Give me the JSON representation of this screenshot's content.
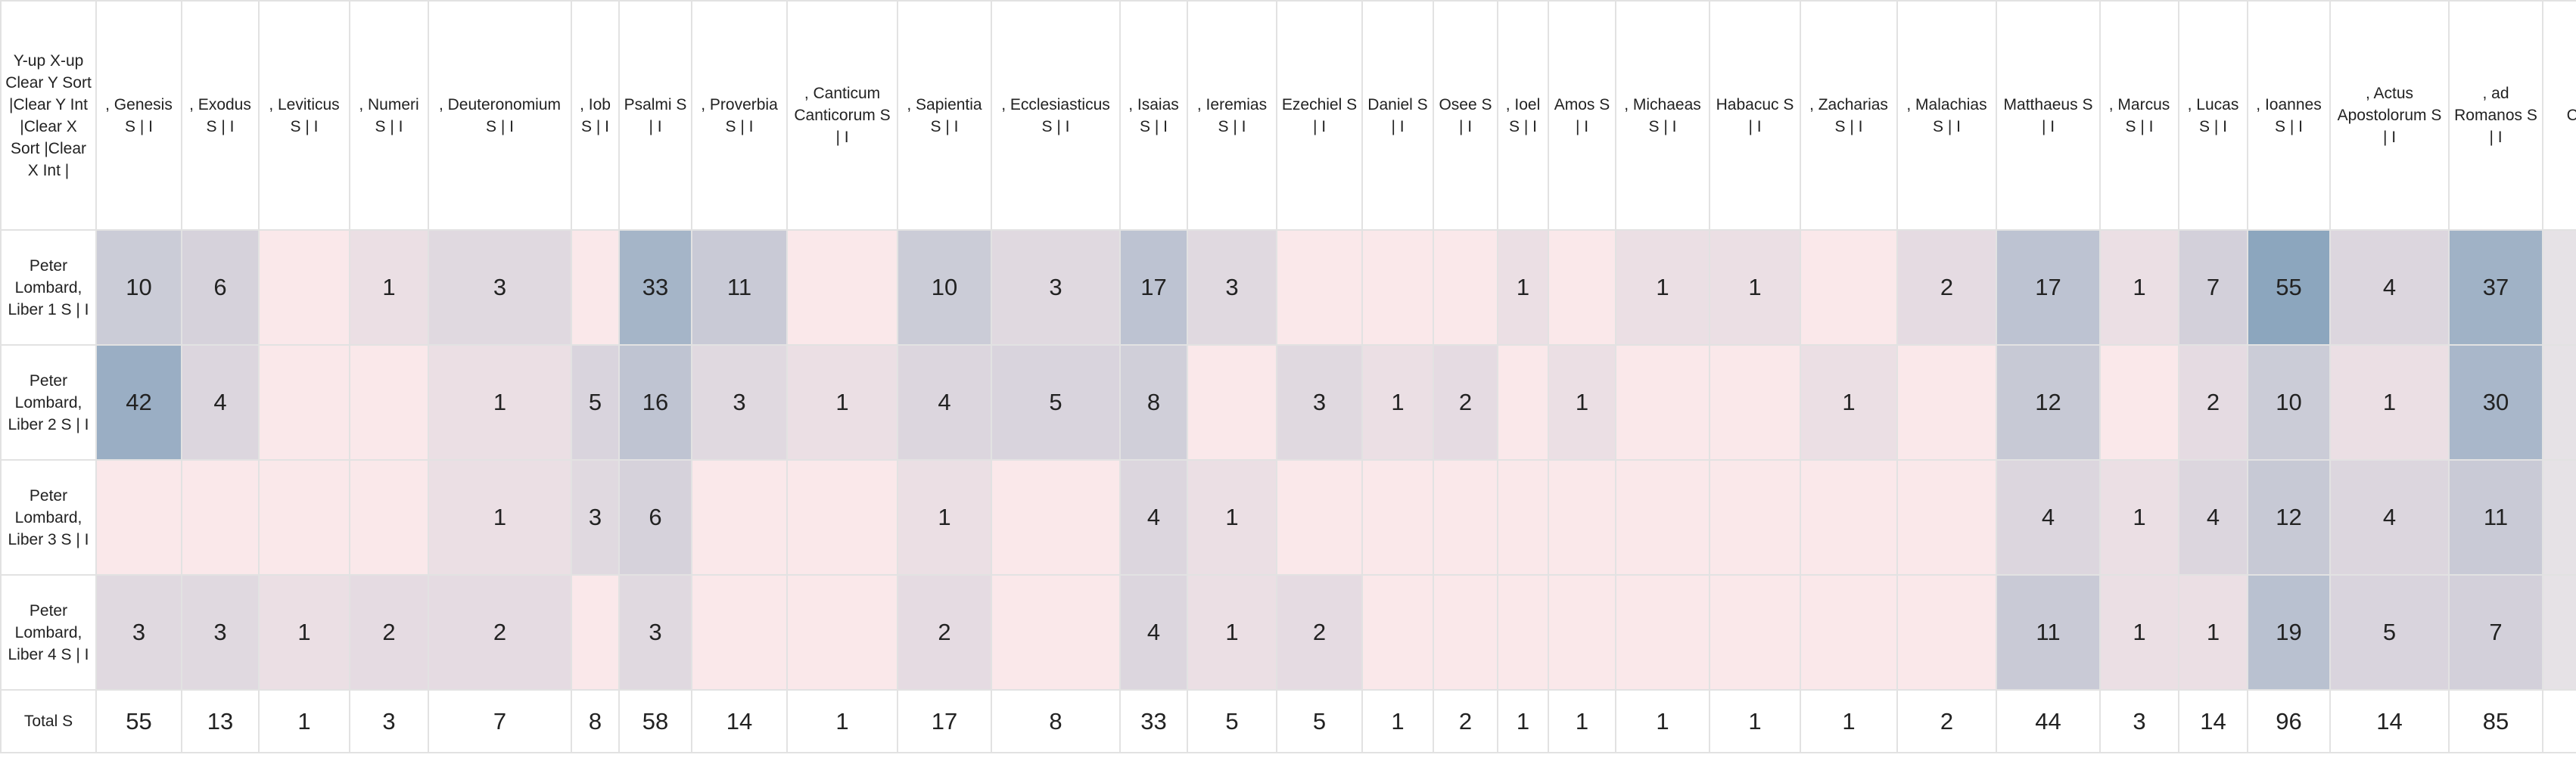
{
  "table": {
    "corner": "Y-up X-up Clear Y Sort |Clear Y Int |Clear X Sort |Clear X Int |",
    "columns": [
      ", Genesis S | I",
      ", Exodus S | I",
      ", Leviticus S | I",
      ", Numeri S | I",
      ", Deuteronomium S | I",
      ", Iob S | I",
      "Psalmi S | I",
      ", Proverbia S | I",
      ", Canticum Canticorum S | I",
      ", Sapientia S | I",
      ", Ecclesiasticus S | I",
      ", Isaias S | I",
      ", Ieremias S | I",
      "Ezechiel S | I",
      "Daniel S | I",
      "Osee S | I",
      ", Ioel S | I",
      "Amos S | I",
      ", Michaeas S | I",
      "Habacuc S | I",
      ", Zacharias S | I",
      ", Malachias S | I",
      "Matthaeus S | I",
      ", Marcus S | I",
      ", Lucas S | I",
      ", Ioannes S | I",
      ", Actus Apostolorum S | I",
      ", ad Romanos S | I",
      "Co"
    ],
    "rows": [
      {
        "label": "Peter Lombard, Liber 1 S | I",
        "cells": [
          10,
          6,
          null,
          1,
          3,
          null,
          33,
          11,
          null,
          10,
          3,
          17,
          3,
          null,
          null,
          null,
          1,
          null,
          1,
          1,
          null,
          2,
          17,
          1,
          7,
          55,
          4,
          37,
          null
        ]
      },
      {
        "label": "Peter Lombard, Liber 2 S | I",
        "cells": [
          42,
          4,
          null,
          null,
          1,
          5,
          16,
          3,
          1,
          4,
          5,
          8,
          null,
          3,
          1,
          2,
          null,
          1,
          null,
          null,
          1,
          null,
          12,
          null,
          2,
          10,
          1,
          30,
          null
        ]
      },
      {
        "label": "Peter Lombard, Liber 3 S | I",
        "cells": [
          null,
          null,
          null,
          null,
          1,
          3,
          6,
          null,
          null,
          1,
          null,
          4,
          1,
          null,
          null,
          null,
          null,
          null,
          null,
          null,
          null,
          null,
          4,
          1,
          4,
          12,
          4,
          11,
          null
        ]
      },
      {
        "label": "Peter Lombard, Liber 4 S | I",
        "cells": [
          3,
          3,
          1,
          2,
          2,
          null,
          3,
          null,
          null,
          2,
          null,
          4,
          1,
          2,
          null,
          null,
          null,
          null,
          null,
          null,
          null,
          null,
          11,
          1,
          1,
          19,
          5,
          7,
          null
        ]
      }
    ],
    "total": {
      "label": "Total S",
      "cells": [
        55,
        13,
        1,
        3,
        7,
        8,
        58,
        14,
        1,
        17,
        8,
        33,
        5,
        5,
        1,
        2,
        1,
        1,
        1,
        1,
        1,
        2,
        44,
        3,
        14,
        96,
        14,
        85,
        null
      ]
    }
  }
}
